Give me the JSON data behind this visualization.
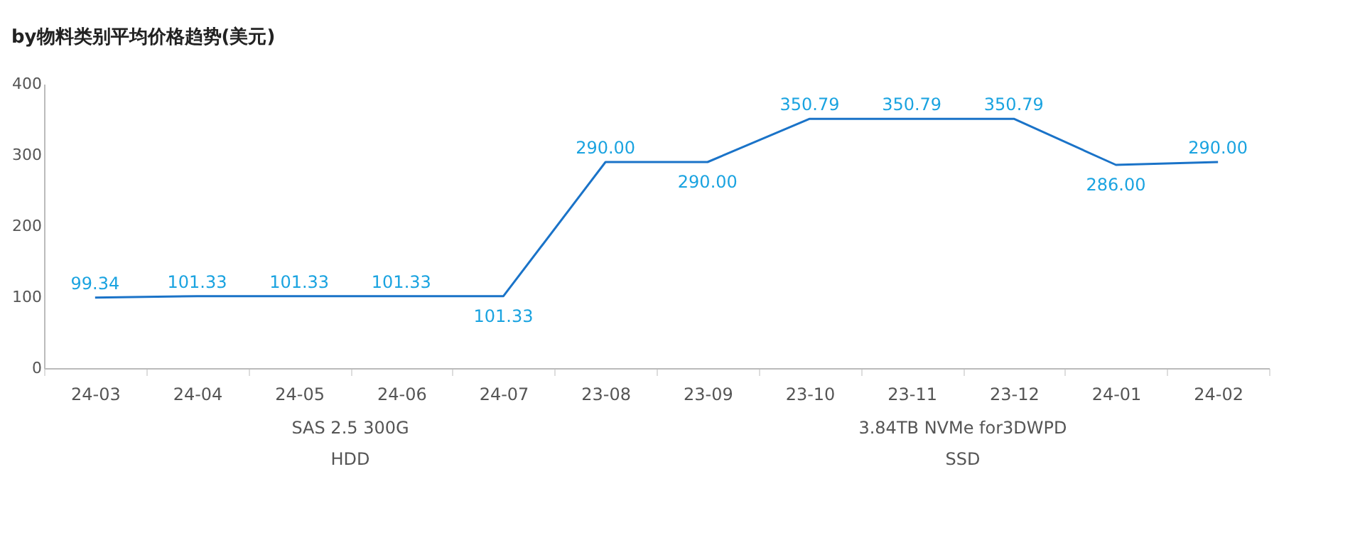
{
  "chart_data": {
    "type": "line",
    "title": "by物料类别平均价格趋势(美元)",
    "categories": [
      "24-03",
      "24-04",
      "24-05",
      "24-06",
      "24-07",
      "23-08",
      "23-09",
      "23-10",
      "23-11",
      "23-12",
      "24-01",
      "24-02"
    ],
    "values": [
      99.34,
      101.33,
      101.33,
      101.33,
      101.33,
      290.0,
      290.0,
      350.79,
      350.79,
      350.79,
      286.0,
      290.0
    ],
    "value_labels": [
      "99.34",
      "101.33",
      "101.33",
      "101.33",
      "101.33",
      "290.00",
      "290.00",
      "350.79",
      "350.79",
      "350.79",
      "286.00",
      "290.00"
    ],
    "color": "#1a73c8",
    "ylim": [
      0,
      400
    ],
    "yticks": [
      0,
      100,
      200,
      300,
      400
    ],
    "grid": false,
    "marker": "none",
    "annotations": [
      "SAS 2.5 300G",
      "HDD",
      "3.84TB NVMe for3DWPD",
      "SSD"
    ]
  }
}
